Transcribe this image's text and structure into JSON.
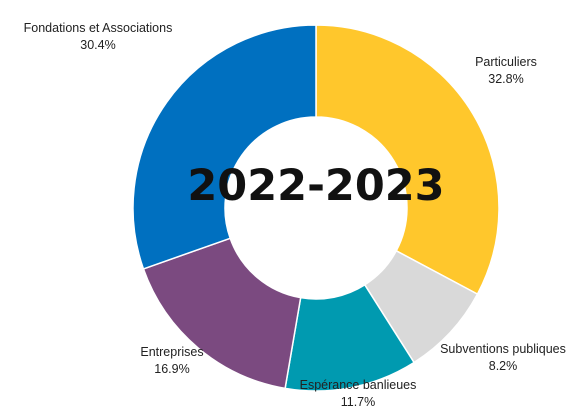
{
  "chart_data": {
    "type": "pie",
    "variant": "donut",
    "center_text": "2022-2023",
    "slices": [
      {
        "label": "Particuliers",
        "value_label": "32.8%",
        "value": 32.8,
        "color": "#FFC72C"
      },
      {
        "label": "Subventions publiques",
        "value_label": "8.2%",
        "value": 8.2,
        "color": "#D9D9D9"
      },
      {
        "label": "Espérance banlieues",
        "value_label": "11.7%",
        "value": 11.7,
        "color": "#009AB0"
      },
      {
        "label": "Entreprises",
        "value_label": "16.9%",
        "value": 16.9,
        "color": "#7B4A80"
      },
      {
        "label": "Fondations et Associations",
        "value_label": "30.4%",
        "value": 30.4,
        "color": "#0070C0"
      }
    ]
  }
}
